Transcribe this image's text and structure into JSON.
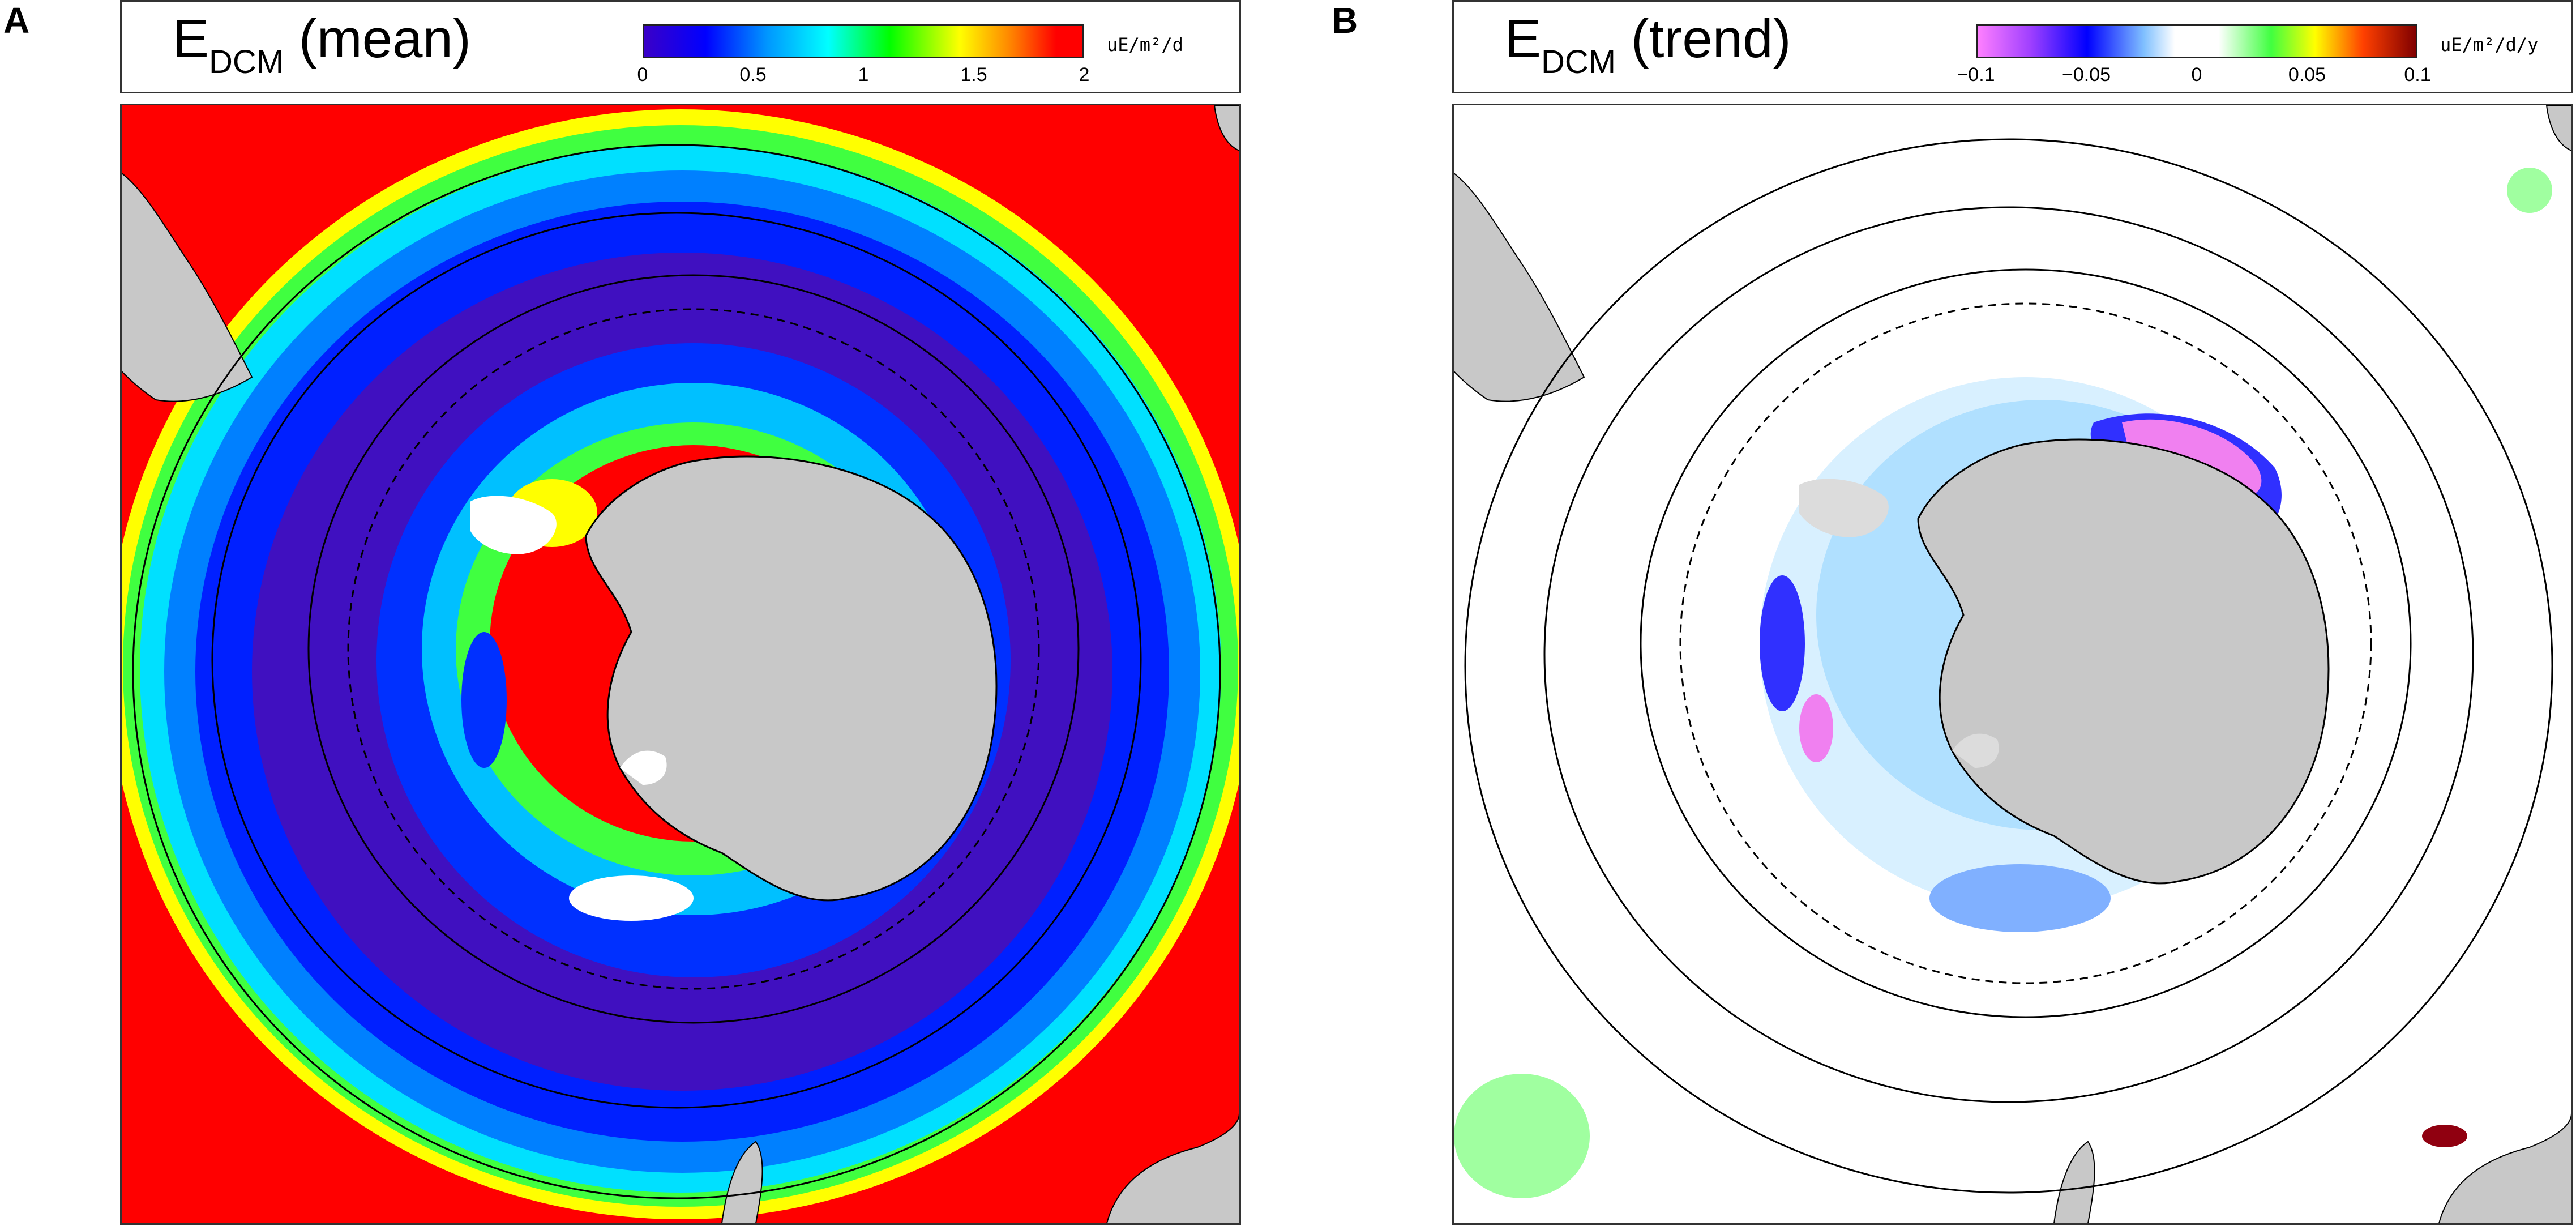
{
  "panels": [
    {
      "letter": "A",
      "title_main": "E",
      "title_sub": "DCM",
      "title_rest": " (mean)",
      "colorbar": {
        "ticks": [
          "0",
          "0.5",
          "1",
          "1.5",
          "2"
        ],
        "units": "uE/m²/d",
        "colors": [
          "#3a00c8",
          "#0000ff",
          "#0096ff",
          "#00ffff",
          "#00ff00",
          "#ffff00",
          "#ff8000",
          "#ff0000"
        ]
      }
    },
    {
      "letter": "B",
      "title_main": "E",
      "title_sub": "DCM",
      "title_rest": " (trend)",
      "colorbar": {
        "ticks": [
          "−0.1",
          "−0.05",
          "0",
          "0.05",
          "0.1"
        ],
        "units": "uE/m²/d/y",
        "colors": [
          "#ff80ff",
          "#a040ff",
          "#0000ff",
          "#80c0ff",
          "#ffffff",
          "#ffffff",
          "#40ff40",
          "#ffff00",
          "#ff4000",
          "#800000"
        ]
      }
    }
  ],
  "map_colors": {
    "land": "#c8c8c8",
    "ice_shelf_a": "#ffffff",
    "ice_shelf_b": "#dcdcdc",
    "mean_red": "#ff0000",
    "mean_purple": "#4010c0",
    "mean_blue": "#0020ff",
    "mean_cyan": "#00c0ff",
    "mean_green": "#40ff40",
    "mean_yellow": "#ffff00",
    "trend_magenta": "#f080f0",
    "trend_blue": "#3030ff",
    "trend_lightblue": "#b0e0ff",
    "trend_green": "#a0ffa0",
    "trend_darkred": "#900010",
    "front_line": "#000000"
  }
}
